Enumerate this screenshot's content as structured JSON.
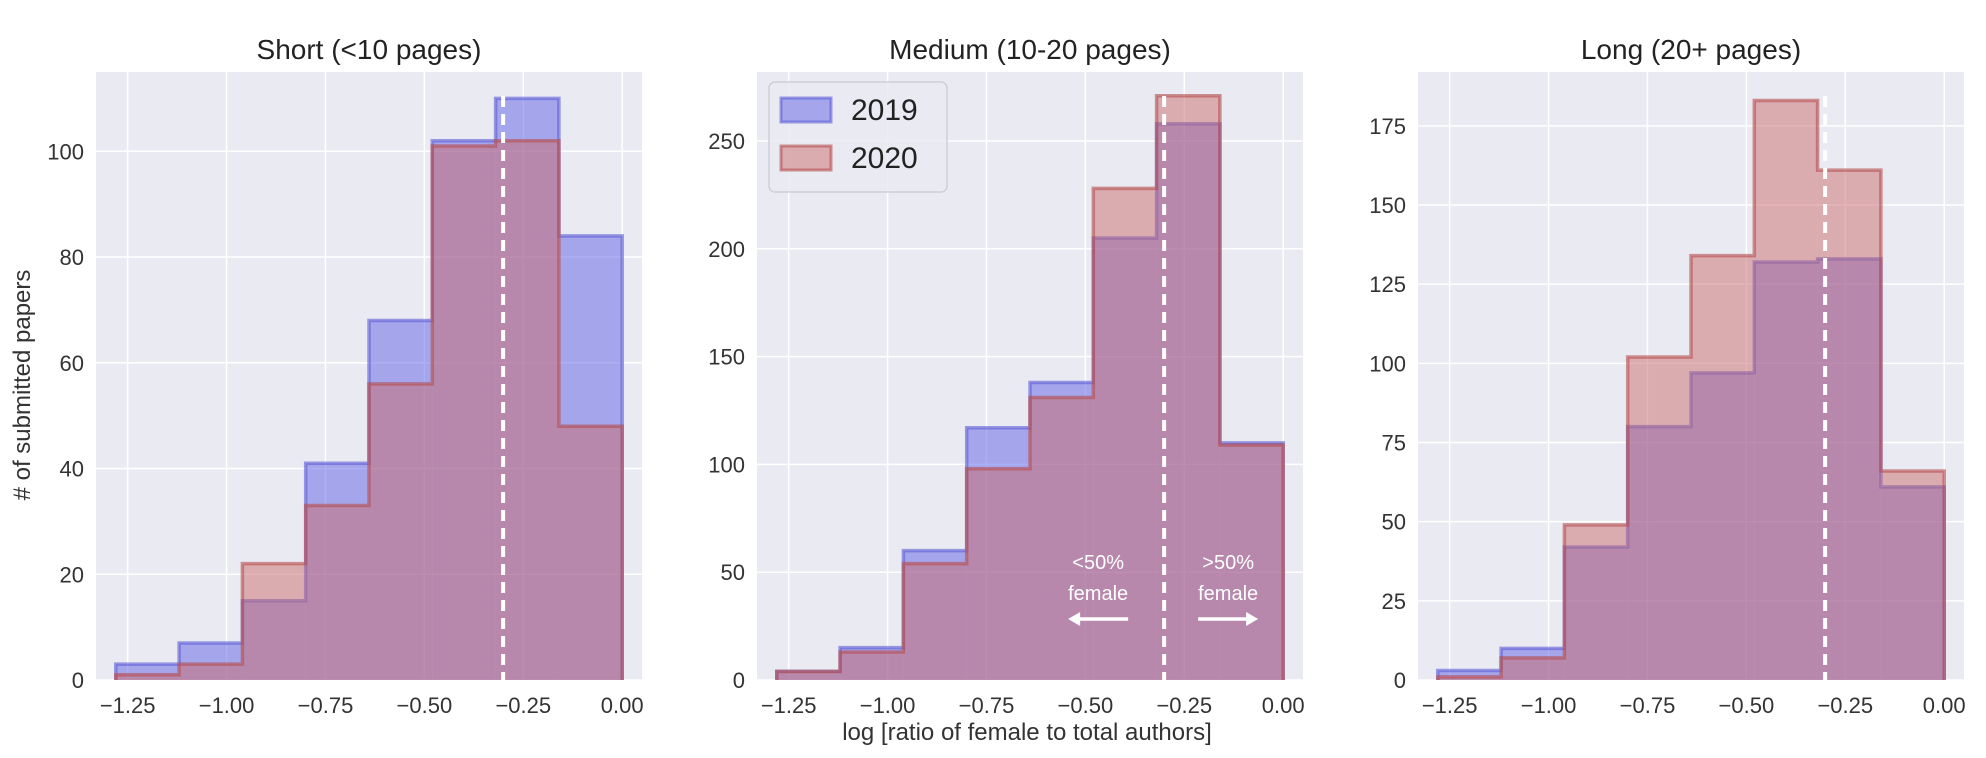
{
  "figure": {
    "ylabel": "# of submitted papers",
    "xlabel": "log [ratio of female to total authors]",
    "threshold_line": {
      "x": -0.301,
      "color": "#ffffff",
      "style": "dashed"
    },
    "colors": {
      "background": "#eaeaf2",
      "grid": "#ffffff",
      "series_2019_fill": "#6b6be8",
      "series_2019_edge": "#5c5cd6",
      "series_2020_fill": "#c96c6c",
      "series_2020_edge": "#b54d4d"
    },
    "legend": {
      "placement": "top-left",
      "panel": 1,
      "items": [
        "2019",
        "2020"
      ]
    },
    "annotations": [
      {
        "line1": "<50%",
        "line2": "female",
        "arrow": "left"
      },
      {
        "line1": ">50%",
        "line2": "female",
        "arrow": "right"
      }
    ]
  },
  "chart_data": [
    {
      "type": "histogram",
      "title": "Short (<10 pages)",
      "bin_edges": [
        -1.28,
        -1.12,
        -0.96,
        -0.8,
        -0.64,
        -0.48,
        -0.32,
        -0.16,
        0.0
      ],
      "xlim": [
        -1.33,
        0.05
      ],
      "ylim": [
        0,
        115
      ],
      "xticks": [
        -1.25,
        -1.0,
        -0.75,
        -0.5,
        -0.25,
        0.0
      ],
      "xtick_labels": [
        "−1.25",
        "−1.00",
        "−0.75",
        "−0.50",
        "−0.25",
        "0.00"
      ],
      "yticks": [
        0,
        20,
        40,
        60,
        80,
        100
      ],
      "ytick_labels": [
        "0",
        "20",
        "40",
        "60",
        "80",
        "100"
      ],
      "series": [
        {
          "name": "2019",
          "values": [
            3,
            7,
            15,
            41,
            68,
            102,
            110,
            84
          ]
        },
        {
          "name": "2020",
          "values": [
            1,
            3,
            22,
            33,
            56,
            101,
            102,
            48
          ]
        }
      ]
    },
    {
      "type": "histogram",
      "title": "Medium (10-20 pages)",
      "bin_edges": [
        -1.28,
        -1.12,
        -0.96,
        -0.8,
        -0.64,
        -0.48,
        -0.32,
        -0.16,
        0.0
      ],
      "xlim": [
        -1.33,
        0.05
      ],
      "ylim": [
        0,
        282
      ],
      "xticks": [
        -1.25,
        -1.0,
        -0.75,
        -0.5,
        -0.25,
        0.0
      ],
      "xtick_labels": [
        "−1.25",
        "−1.00",
        "−0.75",
        "−0.50",
        "−0.25",
        "0.00"
      ],
      "yticks": [
        0,
        50,
        100,
        150,
        200,
        250
      ],
      "ytick_labels": [
        "0",
        "50",
        "100",
        "150",
        "200",
        "250"
      ],
      "series": [
        {
          "name": "2019",
          "values": [
            4,
            15,
            60,
            117,
            138,
            205,
            258,
            110
          ]
        },
        {
          "name": "2020",
          "values": [
            4,
            13,
            54,
            98,
            131,
            228,
            271,
            109
          ]
        }
      ]
    },
    {
      "type": "histogram",
      "title": "Long (20+ pages)",
      "bin_edges": [
        -1.28,
        -1.12,
        -0.96,
        -0.8,
        -0.64,
        -0.48,
        -0.32,
        -0.16,
        0.0
      ],
      "xlim": [
        -1.33,
        0.05
      ],
      "ylim": [
        0,
        192
      ],
      "xticks": [
        -1.25,
        -1.0,
        -0.75,
        -0.5,
        -0.25,
        0.0
      ],
      "xtick_labels": [
        "−1.25",
        "−1.00",
        "−0.75",
        "−0.50",
        "−0.25",
        "0.00"
      ],
      "yticks": [
        0,
        25,
        50,
        75,
        100,
        125,
        150,
        175
      ],
      "ytick_labels": [
        "0",
        "25",
        "50",
        "75",
        "100",
        "125",
        "150",
        "175"
      ],
      "series": [
        {
          "name": "2019",
          "values": [
            3,
            10,
            42,
            80,
            97,
            132,
            133,
            61
          ]
        },
        {
          "name": "2020",
          "values": [
            1,
            7,
            49,
            102,
            134,
            183,
            161,
            66
          ]
        }
      ]
    }
  ]
}
